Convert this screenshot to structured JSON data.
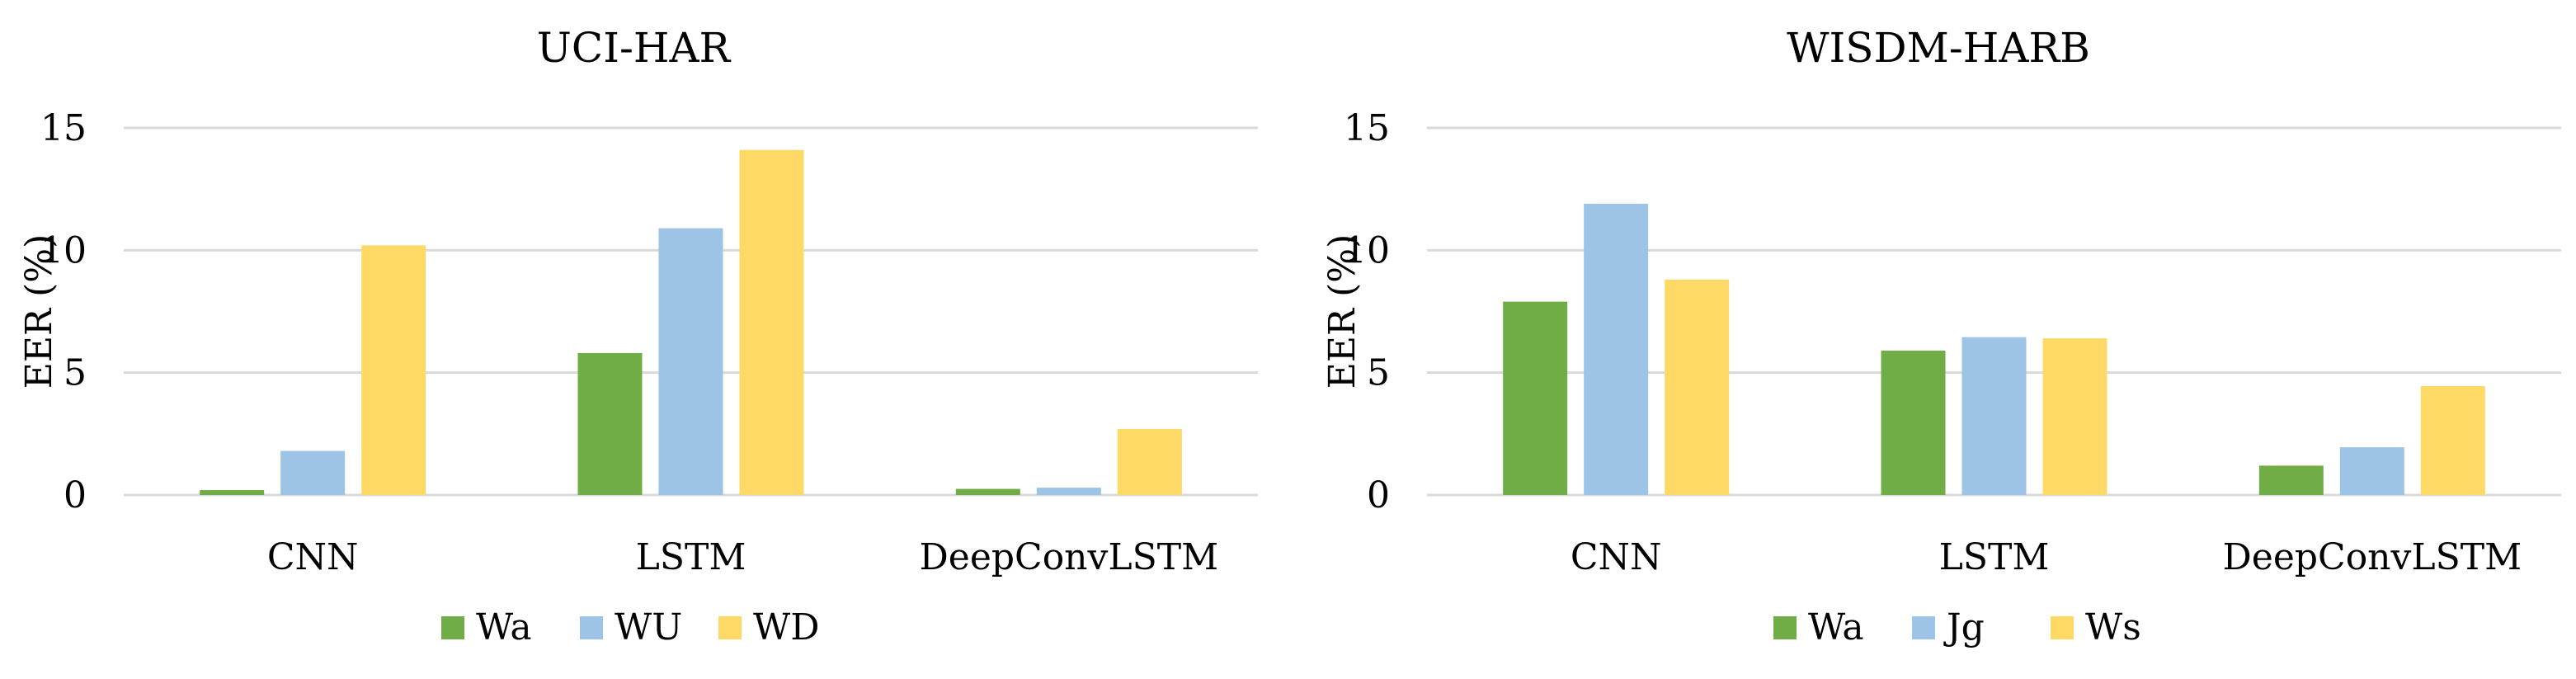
{
  "chart_data": [
    {
      "type": "bar",
      "title": "UCI-HAR",
      "xlabel": "",
      "ylabel": "EER (%)",
      "ylim": [
        0,
        15
      ],
      "yticks": [
        0,
        5,
        10,
        15
      ],
      "grid": true,
      "legend_position": "bottom",
      "categories": [
        "CNN",
        "LSTM",
        "DeepConvLSTM"
      ],
      "series": [
        {
          "name": "Wa",
          "color": "#70ad47",
          "values": [
            0.2,
            5.8,
            0.25
          ]
        },
        {
          "name": "WU",
          "color": "#9dc3e6",
          "values": [
            1.8,
            10.9,
            0.3
          ]
        },
        {
          "name": "WD",
          "color": "#ffd966",
          "values": [
            10.2,
            14.1,
            2.7
          ]
        }
      ]
    },
    {
      "type": "bar",
      "title": "WISDM-HARB",
      "xlabel": "",
      "ylabel": "EER (%)",
      "ylim": [
        0,
        15
      ],
      "yticks": [
        0,
        5,
        10,
        15
      ],
      "grid": true,
      "legend_position": "bottom",
      "categories": [
        "CNN",
        "LSTM",
        "DeepConvLSTM"
      ],
      "series": [
        {
          "name": "Wa",
          "color": "#70ad47",
          "values": [
            7.9,
            5.9,
            1.2
          ]
        },
        {
          "name": "Jg",
          "color": "#9dc3e6",
          "values": [
            11.9,
            6.45,
            1.95
          ]
        },
        {
          "name": "Ws",
          "color": "#ffd966",
          "values": [
            8.8,
            6.4,
            4.45
          ]
        }
      ]
    }
  ]
}
